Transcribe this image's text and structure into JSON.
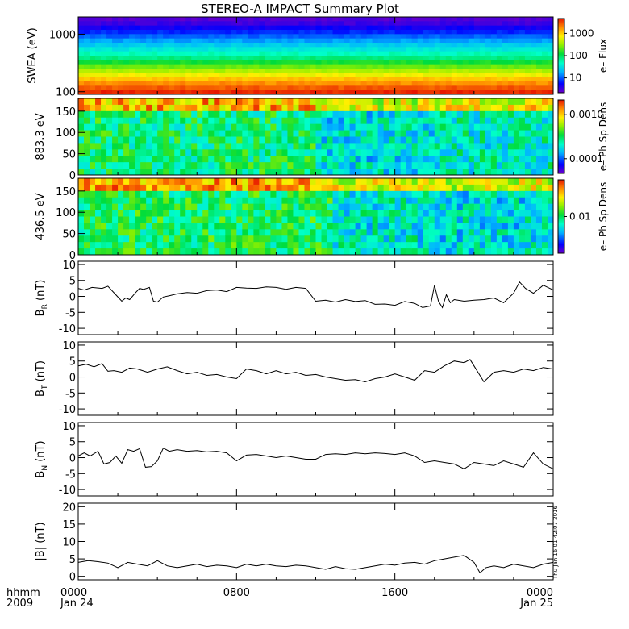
{
  "title": "STEREO-A IMPACT Summary Plot",
  "footer": {
    "label_line1": "hhmm",
    "label_line2": "2009",
    "date_start": "Jan 24",
    "date_end": "Jan 25",
    "stamp": "Thu Jan 16 01:42:07 2016"
  },
  "colors": {
    "line": "#000000",
    "frame": "#000000",
    "background": "#ffffff"
  },
  "chart_data": [
    {
      "type": "heatmap",
      "ylabel": "SWEA (eV)",
      "y_scale": "log",
      "ylim": [
        90,
        2000
      ],
      "y_ticks": [
        {
          "value": 1000,
          "label": "1000"
        },
        {
          "value": 100,
          "label": "100"
        }
      ],
      "x_ticks": [
        "0000",
        "0800",
        "1600",
        "0000"
      ],
      "xlim_hours": [
        0,
        24
      ],
      "color_scale": "log",
      "colorbar": {
        "label": "e– Flux",
        "ticks": [
          "1000",
          "100",
          "10"
        ]
      },
      "profile": [
        {
          "energy": 100,
          "level": 0.98
        },
        {
          "energy": 150,
          "level": 0.85
        },
        {
          "energy": 250,
          "level": 0.65
        },
        {
          "energy": 400,
          "level": 0.45
        },
        {
          "energy": 700,
          "level": 0.3
        },
        {
          "energy": 1000,
          "level": 0.18
        },
        {
          "energy": 1500,
          "level": 0.06
        },
        {
          "energy": 2000,
          "level": 0.02
        }
      ]
    },
    {
      "type": "heatmap",
      "ylabel": "883.3 eV",
      "ylim": [
        0,
        180
      ],
      "y_ticks": [
        {
          "value": 150,
          "label": "150"
        },
        {
          "value": 100,
          "label": "100"
        },
        {
          "value": 50,
          "label": "50"
        },
        {
          "value": 0,
          "label": "0"
        }
      ],
      "x_ticks": [
        "0000",
        "0800",
        "1600",
        "0000"
      ],
      "xlim_hours": [
        0,
        24
      ],
      "color_scale": "log",
      "colorbar": {
        "label": "e– Ph Sp Dens",
        "ticks": [
          "0.0010",
          "0.0001"
        ]
      },
      "time_blocks_hours": [
        {
          "start": 0,
          "end": 12,
          "level": 0.48
        },
        {
          "start": 12,
          "end": 18,
          "level": 0.36
        },
        {
          "start": 18,
          "end": 24,
          "level": 0.4
        }
      ]
    },
    {
      "type": "heatmap",
      "ylabel": "436.5 eV",
      "ylim": [
        0,
        180
      ],
      "y_ticks": [
        {
          "value": 150,
          "label": "150"
        },
        {
          "value": 100,
          "label": "100"
        },
        {
          "value": 50,
          "label": "50"
        },
        {
          "value": 0,
          "label": "0"
        }
      ],
      "x_ticks": [
        "0000",
        "0800",
        "1600",
        "0000"
      ],
      "xlim_hours": [
        0,
        24
      ],
      "color_scale": "log",
      "colorbar": {
        "label": "e– Ph Sp Dens",
        "ticks": [
          "0.01"
        ]
      },
      "time_blocks_hours": [
        {
          "start": 0,
          "end": 13,
          "level": 0.5
        },
        {
          "start": 13,
          "end": 18,
          "level": 0.38
        },
        {
          "start": 18,
          "end": 24,
          "level": 0.36
        }
      ]
    },
    {
      "type": "line",
      "ylabel": "B",
      "ylabel_sub": "R",
      "ylabel_unit": "(nT)",
      "ylim": [
        -12,
        11
      ],
      "y_ticks": [
        "10",
        "5",
        "0",
        "-5",
        "-10"
      ],
      "x_ticks": [
        "0000",
        "0800",
        "1600",
        "0000"
      ],
      "x": [
        0,
        0.3,
        0.7,
        1.2,
        1.5,
        1.9,
        2.2,
        2.4,
        2.6,
        2.9,
        3.1,
        3.3,
        3.6,
        3.8,
        4.0,
        4.3,
        4.6,
        5.0,
        5.5,
        6.0,
        6.5,
        7.0,
        7.5,
        8.0,
        8.5,
        9.0,
        9.5,
        10.0,
        10.5,
        11.0,
        11.5,
        12.0,
        12.5,
        13.0,
        13.5,
        14.0,
        14.5,
        15.0,
        15.5,
        16.0,
        16.5,
        17.0,
        17.4,
        17.8,
        18.0,
        18.2,
        18.4,
        18.6,
        18.8,
        19.0,
        19.5,
        20.0,
        20.5,
        21.0,
        21.5,
        22.0,
        22.3,
        22.6,
        23.0,
        23.5,
        24.0
      ],
      "y": [
        2.5,
        2.0,
        2.8,
        2.5,
        3.2,
        0.5,
        -1.5,
        -0.5,
        -1.0,
        1.2,
        2.5,
        2.2,
        2.8,
        -1.5,
        -1.8,
        -0.2,
        0.2,
        0.8,
        1.2,
        1.0,
        1.8,
        2.0,
        1.5,
        2.8,
        2.6,
        2.5,
        3.0,
        2.8,
        2.2,
        2.8,
        2.5,
        -1.5,
        -1.2,
        -1.8,
        -1.0,
        -1.6,
        -1.3,
        -2.5,
        -2.4,
        -2.8,
        -1.6,
        -2.2,
        -3.5,
        -3.0,
        3.5,
        -1.5,
        -3.5,
        0.5,
        -2.0,
        -1.0,
        -1.5,
        -1.2,
        -1.0,
        -0.5,
        -2.0,
        1.0,
        4.5,
        2.5,
        1.0,
        3.5,
        2.0
      ]
    },
    {
      "type": "line",
      "ylabel": "B",
      "ylabel_sub": "T",
      "ylabel_unit": "(nT)",
      "ylim": [
        -12,
        11
      ],
      "y_ticks": [
        "10",
        "5",
        "0",
        "-5",
        "-10"
      ],
      "x_ticks": [
        "0000",
        "0800",
        "1600",
        "0000"
      ],
      "x": [
        0,
        0.4,
        0.8,
        1.2,
        1.5,
        1.8,
        2.2,
        2.6,
        3.0,
        3.5,
        4.0,
        4.5,
        5.0,
        5.5,
        6.0,
        6.5,
        7.0,
        7.5,
        8.0,
        8.5,
        9.0,
        9.5,
        10.0,
        10.5,
        11.0,
        11.5,
        12.0,
        12.5,
        13.0,
        13.5,
        14.0,
        14.5,
        15.0,
        15.5,
        16.0,
        16.5,
        17.0,
        17.5,
        18.0,
        18.5,
        19.0,
        19.5,
        19.8,
        20.0,
        20.5,
        21.0,
        21.5,
        22.0,
        22.5,
        23.0,
        23.5,
        24.0
      ],
      "y": [
        3.5,
        4.0,
        3.2,
        4.2,
        1.8,
        2.0,
        1.5,
        2.8,
        2.5,
        1.5,
        2.5,
        3.2,
        2.0,
        1.0,
        1.5,
        0.5,
        0.8,
        0.0,
        -0.5,
        2.5,
        2.0,
        1.0,
        2.0,
        1.0,
        1.5,
        0.5,
        0.8,
        0.0,
        -0.5,
        -1.0,
        -0.8,
        -1.5,
        -0.5,
        0.0,
        1.0,
        0.0,
        -1.0,
        2.0,
        1.5,
        3.5,
        5.0,
        4.5,
        5.5,
        3.5,
        -1.5,
        1.5,
        2.0,
        1.5,
        2.5,
        2.0,
        3.0,
        2.5
      ]
    },
    {
      "type": "line",
      "ylabel": "B",
      "ylabel_sub": "N",
      "ylabel_unit": "(nT)",
      "ylim": [
        -12,
        11
      ],
      "y_ticks": [
        "10",
        "5",
        "0",
        "-5",
        "-10"
      ],
      "x_ticks": [
        "0000",
        "0800",
        "1600",
        "0000"
      ],
      "x": [
        0,
        0.3,
        0.6,
        1.0,
        1.3,
        1.6,
        1.9,
        2.2,
        2.5,
        2.8,
        3.1,
        3.4,
        3.7,
        4.0,
        4.3,
        4.6,
        5.0,
        5.5,
        6.0,
        6.5,
        7.0,
        7.5,
        8.0,
        8.5,
        9.0,
        9.5,
        10.0,
        10.5,
        11.0,
        11.5,
        12.0,
        12.5,
        13.0,
        13.5,
        14.0,
        14.5,
        15.0,
        15.5,
        16.0,
        16.5,
        17.0,
        17.5,
        18.0,
        18.5,
        19.0,
        19.5,
        20.0,
        20.5,
        21.0,
        21.5,
        22.0,
        22.5,
        23.0,
        23.5,
        24.0
      ],
      "y": [
        0.5,
        1.5,
        0.5,
        2.0,
        -2.0,
        -1.5,
        0.5,
        -1.8,
        2.5,
        2.0,
        2.8,
        -3.0,
        -2.8,
        -1.0,
        3.0,
        2.0,
        2.5,
        2.0,
        2.2,
        1.8,
        2.0,
        1.5,
        -1.0,
        0.8,
        1.0,
        0.5,
        0.0,
        0.5,
        0.0,
        -0.5,
        -0.5,
        1.0,
        1.2,
        1.0,
        1.5,
        1.2,
        1.5,
        1.3,
        1.0,
        1.5,
        0.5,
        -1.5,
        -1.0,
        -1.5,
        -2.0,
        -3.5,
        -1.5,
        -2.0,
        -2.5,
        -1.0,
        -2.0,
        -3.0,
        1.5,
        -2.0,
        -3.5
      ]
    },
    {
      "type": "line",
      "ylabel": "|B|",
      "ylabel_unit": "(nT)",
      "ylim": [
        -1,
        21
      ],
      "y_ticks": [
        "20",
        "15",
        "10",
        "5",
        "0"
      ],
      "x_ticks": [
        "0000",
        "0800",
        "1600",
        "0000"
      ],
      "x": [
        0,
        0.5,
        1.0,
        1.5,
        2.0,
        2.5,
        3.0,
        3.5,
        4.0,
        4.5,
        5.0,
        5.5,
        6.0,
        6.5,
        7.0,
        7.5,
        8.0,
        8.5,
        9.0,
        9.5,
        10.0,
        10.5,
        11.0,
        11.5,
        12.0,
        12.5,
        13.0,
        13.5,
        14.0,
        14.5,
        15.0,
        15.5,
        16.0,
        16.5,
        17.0,
        17.5,
        18.0,
        18.5,
        19.0,
        19.5,
        20.0,
        20.3,
        20.6,
        21.0,
        21.5,
        22.0,
        22.5,
        23.0,
        23.5,
        24.0
      ],
      "y": [
        4.0,
        4.5,
        4.2,
        3.8,
        2.5,
        4.0,
        3.5,
        3.0,
        4.5,
        3.0,
        2.5,
        3.0,
        3.5,
        2.8,
        3.2,
        3.0,
        2.5,
        3.5,
        3.0,
        3.5,
        3.0,
        2.8,
        3.2,
        3.0,
        2.5,
        2.0,
        2.8,
        2.2,
        2.0,
        2.5,
        3.0,
        3.5,
        3.2,
        3.8,
        4.0,
        3.5,
        4.5,
        5.0,
        5.5,
        6.0,
        4.0,
        1.0,
        2.5,
        3.0,
        2.5,
        3.5,
        3.0,
        2.5,
        3.5,
        4.0
      ]
    }
  ]
}
